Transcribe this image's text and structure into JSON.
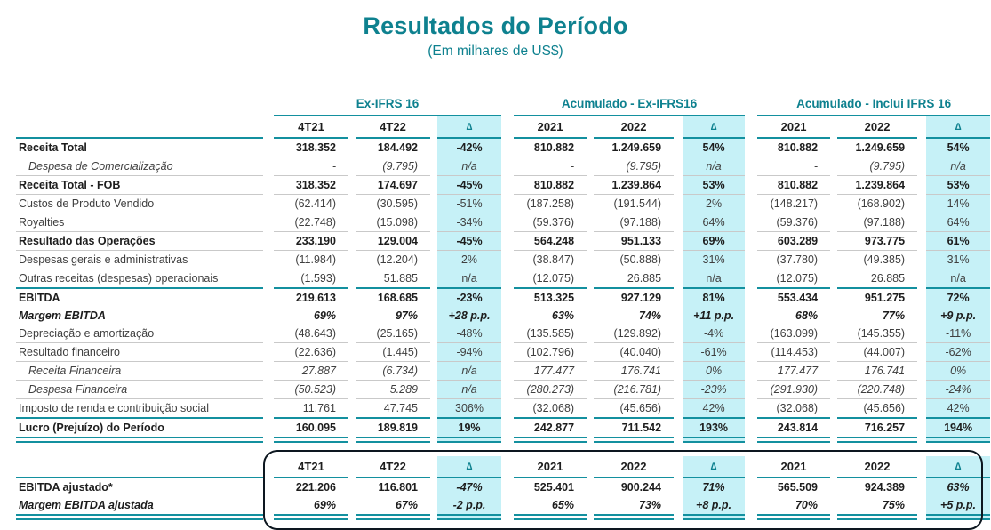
{
  "title": "Resultados do Período",
  "subtitle": "(Em milhares de US$)",
  "colors": {
    "teal": "#0e818f",
    "teal_line": "#13909f",
    "delta_column_bg": "#c6f1f7",
    "adjusted_box_outline": "#0d1720",
    "text": "#3f3f3f",
    "text_bold": "#1d1d1d",
    "row_divider": "#c9c9c9"
  },
  "delta_symbol": "∆",
  "table": {
    "groups": [
      {
        "label": "Ex-IFRS 16",
        "cols": [
          "4T21",
          "4T22",
          "∆"
        ]
      },
      {
        "label": "Acumulado - Ex-IFRS16",
        "cols": [
          "2021",
          "2022",
          "∆"
        ]
      },
      {
        "label": "Acumulado - Inclui IFRS 16",
        "cols": [
          "2021",
          "2022",
          "∆"
        ]
      }
    ],
    "rows": [
      {
        "label": "Receita Total",
        "style": "bold",
        "border": "gray",
        "values": [
          "318.352",
          "184.492",
          "-42%",
          "810.882",
          "1.249.659",
          "54%",
          "810.882",
          "1.249.659",
          "54%"
        ]
      },
      {
        "label": "Despesa de Comercialização",
        "style": "italic",
        "border": "gray",
        "values": [
          "-",
          "(9.795)",
          "n/a",
          "-",
          "(9.795)",
          "n/a",
          "-",
          "(9.795)",
          "n/a"
        ]
      },
      {
        "label": "Receita Total - FOB",
        "style": "bold",
        "border": "gray",
        "values": [
          "318.352",
          "174.697",
          "-45%",
          "810.882",
          "1.239.864",
          "53%",
          "810.882",
          "1.239.864",
          "53%"
        ]
      },
      {
        "label": "Custos de Produto Vendido",
        "style": "normal",
        "border": "gray",
        "values": [
          "(62.414)",
          "(30.595)",
          "-51%",
          "(187.258)",
          "(191.544)",
          "2%",
          "(148.217)",
          "(168.902)",
          "14%"
        ]
      },
      {
        "label": "Royalties",
        "style": "normal",
        "border": "gray",
        "values": [
          "(22.748)",
          "(15.098)",
          "-34%",
          "(59.376)",
          "(97.188)",
          "64%",
          "(59.376)",
          "(97.188)",
          "64%"
        ]
      },
      {
        "label": "Resultado das Operações",
        "style": "bold",
        "border": "gray",
        "values": [
          "233.190",
          "129.004",
          "-45%",
          "564.248",
          "951.133",
          "69%",
          "603.289",
          "973.775",
          "61%"
        ]
      },
      {
        "label": "Despesas gerais e administrativas",
        "style": "normal",
        "border": "gray",
        "values": [
          "(11.984)",
          "(12.204)",
          "2%",
          "(38.847)",
          "(50.888)",
          "31%",
          "(37.780)",
          "(49.385)",
          "31%"
        ]
      },
      {
        "label": "Outras receitas (despesas) operacionais",
        "style": "normal",
        "border": "teal",
        "values": [
          "(1.593)",
          "51.885",
          "n/a",
          "(12.075)",
          "26.885",
          "n/a",
          "(12.075)",
          "26.885",
          "n/a"
        ]
      },
      {
        "label": "EBITDA",
        "style": "bold",
        "border": "none",
        "values": [
          "219.613",
          "168.685",
          "-23%",
          "513.325",
          "927.129",
          "81%",
          "553.434",
          "951.275",
          "72%"
        ]
      },
      {
        "label": "Margem EBITDA",
        "style": "bold-italic",
        "border": "none",
        "values": [
          "69%",
          "97%",
          "+28 p.p.",
          "63%",
          "74%",
          "+11 p.p.",
          "68%",
          "77%",
          "+9 p.p."
        ]
      },
      {
        "label": "Depreciação e amortização",
        "style": "normal",
        "border": "gray",
        "values": [
          "(48.643)",
          "(25.165)",
          "-48%",
          "(135.585)",
          "(129.892)",
          "-4%",
          "(163.099)",
          "(145.355)",
          "-11%"
        ]
      },
      {
        "label": "Resultado financeiro",
        "style": "normal",
        "border": "gray",
        "values": [
          "(22.636)",
          "(1.445)",
          "-94%",
          "(102.796)",
          "(40.040)",
          "-61%",
          "(114.453)",
          "(44.007)",
          "-62%"
        ]
      },
      {
        "label": "Receita Financeira",
        "style": "italic",
        "border": "gray",
        "values": [
          "27.887",
          "(6.734)",
          "n/a",
          "177.477",
          "176.741",
          "0%",
          "177.477",
          "176.741",
          "0%"
        ]
      },
      {
        "label": "Despesa Financeira",
        "style": "italic",
        "border": "gray",
        "values": [
          "(50.523)",
          "5.289",
          "n/a",
          "(280.273)",
          "(216.781)",
          "-23%",
          "(291.930)",
          "(220.748)",
          "-24%"
        ]
      },
      {
        "label": "Imposto de renda e contribuição social",
        "style": "normal",
        "border": "teal",
        "values": [
          "11.761",
          "47.745",
          "306%",
          "(32.068)",
          "(45.656)",
          "42%",
          "(32.068)",
          "(45.656)",
          "42%"
        ]
      },
      {
        "label": "Lucro (Prejuízo) do Período",
        "style": "bold",
        "border": "teal",
        "double_rule": true,
        "values": [
          "160.095",
          "189.819",
          "19%",
          "242.877",
          "711.542",
          "193%",
          "243.814",
          "716.257",
          "194%"
        ]
      }
    ],
    "adjusted_block": {
      "cols": [
        "4T21",
        "4T22",
        "∆",
        "2021",
        "2022",
        "∆",
        "2021",
        "2022",
        "∆"
      ],
      "rows": [
        {
          "label": "EBITDA ajustado*",
          "style": "bold",
          "border": "none",
          "delta_style": "bold-italic",
          "values": [
            "221.206",
            "116.801",
            "-47%",
            "525.401",
            "900.244",
            "71%",
            "565.509",
            "924.389",
            "63%"
          ]
        },
        {
          "label": "Margem EBITDA ajustada",
          "style": "bold-italic",
          "border": "teal",
          "double_rule": true,
          "values": [
            "69%",
            "67%",
            "-2 p.p.",
            "65%",
            "73%",
            "+8 p.p.",
            "70%",
            "75%",
            "+5 p.p."
          ]
        }
      ]
    }
  }
}
